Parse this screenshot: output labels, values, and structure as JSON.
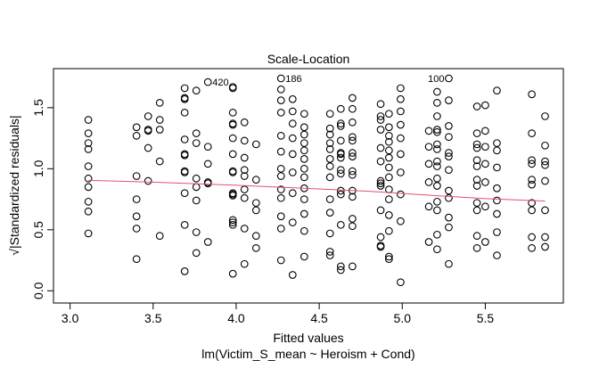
{
  "chart_data": {
    "type": "scatter",
    "title": "Scale-Location",
    "xlabel": "Fitted values",
    "subtitle": "lm(Victim_S_mean ~ Heroism + Cond)",
    "ylabel": "√|Standardized residuals|",
    "xlim": [
      2.9,
      5.97
    ],
    "ylim": [
      -0.1,
      1.82
    ],
    "xticks": [
      "3.0",
      "3.5",
      "4.0",
      "4.5",
      "5.0",
      "5.5"
    ],
    "yticks": [
      "0.0",
      "0.5",
      "1.0",
      "1.5"
    ],
    "grid": false,
    "columns": [
      {
        "x": 3.11,
        "y": [
          1.4,
          1.29,
          1.21,
          1.16,
          1.02,
          0.92,
          0.85,
          0.73,
          0.65,
          0.47
        ]
      },
      {
        "x": 3.4,
        "y": [
          1.34,
          1.27,
          0.94,
          0.75,
          0.61,
          0.51,
          0.26
        ]
      },
      {
        "x": 3.47,
        "y": [
          1.43,
          1.32,
          1.31,
          1.17,
          0.9
        ]
      },
      {
        "x": 3.54,
        "y": [
          1.54,
          1.4,
          1.32,
          1.06,
          0.45
        ]
      },
      {
        "x": 3.69,
        "y": [
          1.66,
          1.58,
          1.57,
          1.46,
          1.24,
          1.12,
          1.11,
          0.98,
          0.97,
          0.8,
          0.54,
          0.16
        ]
      },
      {
        "x": 3.76,
        "y": [
          1.64,
          1.29,
          1.21,
          0.92,
          0.85,
          0.74,
          0.48,
          0.31
        ]
      },
      {
        "x": 3.83,
        "y": [
          1.71,
          1.18,
          1.04,
          0.89,
          0.88,
          0.4
        ]
      },
      {
        "x": 3.98,
        "y": [
          1.67,
          1.66,
          1.46,
          1.37,
          1.36,
          1.25,
          1.12,
          0.98,
          0.97,
          0.8,
          0.79,
          0.78,
          0.58,
          0.56,
          0.54,
          0.14
        ]
      },
      {
        "x": 4.05,
        "y": [
          1.38,
          1.23,
          1.09,
          0.99,
          0.94,
          0.83,
          0.76,
          0.51,
          0.22
        ]
      },
      {
        "x": 4.12,
        "y": [
          1.2,
          0.91,
          0.72,
          0.66,
          0.45,
          0.35
        ]
      },
      {
        "x": 4.27,
        "y": [
          1.74,
          1.65,
          1.56,
          1.46,
          1.27,
          1.14,
          1.0,
          0.94,
          0.83,
          0.76,
          0.61,
          0.51,
          0.25
        ]
      },
      {
        "x": 4.34,
        "y": [
          1.57,
          1.47,
          1.37,
          1.25,
          1.12,
          0.97,
          0.8,
          0.56,
          0.13
        ]
      },
      {
        "x": 4.41,
        "y": [
          1.45,
          1.34,
          1.28,
          1.21,
          1.15,
          1.08,
          1.0,
          0.93,
          0.84,
          0.75,
          0.63,
          0.49,
          0.28
        ]
      },
      {
        "x": 4.565,
        "y": [
          1.45,
          1.33,
          1.28,
          1.21,
          1.16,
          1.08,
          1.02,
          0.93,
          0.75,
          0.64,
          0.47,
          0.32,
          0.29
        ]
      },
      {
        "x": 4.63,
        "y": [
          1.49,
          1.37,
          1.35,
          1.23,
          1.13,
          1.12,
          1.09,
          0.99,
          0.96,
          0.82,
          0.79,
          0.54,
          0.2,
          0.17
        ]
      },
      {
        "x": 4.7,
        "y": [
          1.58,
          1.49,
          1.38,
          1.26,
          1.23,
          1.13,
          1.1,
          0.98,
          0.95,
          0.82,
          0.77,
          0.59,
          0.53,
          0.2
        ]
      },
      {
        "x": 4.87,
        "y": [
          1.53,
          1.43,
          1.4,
          1.32,
          1.17,
          1.06,
          0.9,
          0.88,
          0.86,
          0.66,
          0.44,
          0.37,
          0.36
        ]
      },
      {
        "x": 4.92,
        "y": [
          1.45,
          1.34,
          1.27,
          1.22,
          1.15,
          1.09,
          1.01,
          0.93,
          0.83,
          0.75,
          0.62,
          0.49,
          0.28,
          0.26
        ]
      },
      {
        "x": 4.99,
        "y": [
          1.66,
          1.57,
          1.47,
          1.36,
          1.25,
          1.12,
          0.97,
          0.79,
          0.57,
          0.07
        ]
      },
      {
        "x": 5.16,
        "y": [
          1.31,
          1.18,
          1.04,
          0.89,
          0.69,
          0.4
        ]
      },
      {
        "x": 5.21,
        "y": [
          1.63,
          1.54,
          1.43,
          1.32,
          1.3,
          1.2,
          1.16,
          1.06,
          1.02,
          0.92,
          0.86,
          0.73,
          0.66,
          0.46,
          0.34
        ]
      },
      {
        "x": 5.28,
        "y": [
          1.74,
          1.56,
          1.35,
          1.26,
          1.13,
          1.1,
          0.99,
          0.82,
          0.76,
          0.6,
          0.52,
          0.22
        ]
      },
      {
        "x": 5.45,
        "y": [
          1.51,
          1.29,
          1.2,
          1.17,
          1.07,
          1.02,
          0.91,
          0.86,
          0.72,
          0.66,
          0.45,
          0.35
        ]
      },
      {
        "x": 5.5,
        "y": [
          1.52,
          1.31,
          1.18,
          1.04,
          0.89,
          0.69,
          0.4
        ]
      },
      {
        "x": 5.57,
        "y": [
          1.64,
          1.21,
          1.15,
          1.01,
          0.84,
          0.74,
          0.63,
          0.48,
          0.29
        ]
      },
      {
        "x": 5.78,
        "y": [
          1.61,
          1.29,
          1.07,
          1.04,
          0.91,
          0.87,
          0.72,
          0.66,
          0.44,
          0.35
        ]
      },
      {
        "x": 5.86,
        "y": [
          1.43,
          1.19,
          1.06,
          1.03,
          0.9,
          0.66,
          0.44,
          0.36
        ]
      }
    ],
    "smooth_line": {
      "color": "#DF536B",
      "x": [
        3.11,
        3.5,
        4.0,
        4.41,
        4.8,
        5.2,
        5.5,
        5.86
      ],
      "y": [
        0.905,
        0.89,
        0.865,
        0.84,
        0.815,
        0.78,
        0.755,
        0.735
      ]
    },
    "annotations": [
      {
        "label": "420",
        "x": 3.83,
        "y": 1.71,
        "side": "right"
      },
      {
        "label": "186",
        "x": 4.27,
        "y": 1.74,
        "side": "right"
      },
      {
        "label": "100",
        "x": 5.28,
        "y": 1.74,
        "side": "left"
      }
    ]
  }
}
